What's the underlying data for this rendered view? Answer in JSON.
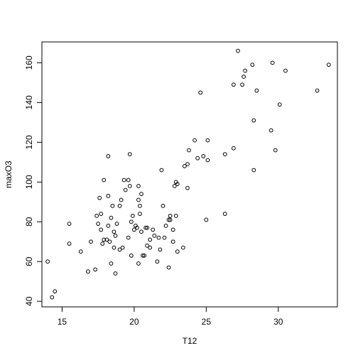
{
  "chart_data": {
    "type": "scatter",
    "xlabel": "T12",
    "ylabel": "maxO3",
    "xlim": [
      13.6,
      34.1
    ],
    "ylim": [
      37.2,
      170.5
    ],
    "x_ticks": [
      "15",
      "20",
      "25",
      "30"
    ],
    "y_ticks": [
      "40",
      "60",
      "80",
      "100",
      "120",
      "140",
      "160"
    ],
    "grid": false,
    "points": [
      {
        "x": 14.0,
        "y": 60
      },
      {
        "x": 14.3,
        "y": 42
      },
      {
        "x": 14.5,
        "y": 45
      },
      {
        "x": 15.5,
        "y": 79
      },
      {
        "x": 15.5,
        "y": 69
      },
      {
        "x": 16.3,
        "y": 65
      },
      {
        "x": 16.8,
        "y": 55
      },
      {
        "x": 17.0,
        "y": 70
      },
      {
        "x": 17.3,
        "y": 56
      },
      {
        "x": 17.4,
        "y": 83
      },
      {
        "x": 17.5,
        "y": 79
      },
      {
        "x": 17.6,
        "y": 92
      },
      {
        "x": 17.7,
        "y": 84
      },
      {
        "x": 17.7,
        "y": 76
      },
      {
        "x": 17.8,
        "y": 69
      },
      {
        "x": 17.9,
        "y": 71
      },
      {
        "x": 17.9,
        "y": 101
      },
      {
        "x": 18.1,
        "y": 71
      },
      {
        "x": 18.2,
        "y": 113
      },
      {
        "x": 18.2,
        "y": 93
      },
      {
        "x": 18.2,
        "y": 78
      },
      {
        "x": 18.3,
        "y": 70
      },
      {
        "x": 18.4,
        "y": 59
      },
      {
        "x": 18.4,
        "y": 82
      },
      {
        "x": 18.5,
        "y": 88
      },
      {
        "x": 18.6,
        "y": 75
      },
      {
        "x": 18.7,
        "y": 73
      },
      {
        "x": 18.6,
        "y": 67
      },
      {
        "x": 18.7,
        "y": 54
      },
      {
        "x": 18.8,
        "y": 79
      },
      {
        "x": 19.0,
        "y": 66
      },
      {
        "x": 19.0,
        "y": 88
      },
      {
        "x": 19.1,
        "y": 91
      },
      {
        "x": 19.2,
        "y": 67
      },
      {
        "x": 19.3,
        "y": 101
      },
      {
        "x": 19.4,
        "y": 96
      },
      {
        "x": 19.6,
        "y": 72
      },
      {
        "x": 19.6,
        "y": 101
      },
      {
        "x": 19.7,
        "y": 98
      },
      {
        "x": 19.7,
        "y": 114
      },
      {
        "x": 19.8,
        "y": 80
      },
      {
        "x": 19.8,
        "y": 63
      },
      {
        "x": 19.9,
        "y": 83
      },
      {
        "x": 20.0,
        "y": 76
      },
      {
        "x": 20.1,
        "y": 78
      },
      {
        "x": 20.2,
        "y": 77
      },
      {
        "x": 20.3,
        "y": 98
      },
      {
        "x": 20.3,
        "y": 91
      },
      {
        "x": 20.3,
        "y": 59
      },
      {
        "x": 20.4,
        "y": 88
      },
      {
        "x": 20.4,
        "y": 84
      },
      {
        "x": 20.5,
        "y": 94
      },
      {
        "x": 20.5,
        "y": 75
      },
      {
        "x": 20.6,
        "y": 63
      },
      {
        "x": 20.7,
        "y": 63
      },
      {
        "x": 20.8,
        "y": 77
      },
      {
        "x": 20.9,
        "y": 77
      },
      {
        "x": 20.9,
        "y": 68
      },
      {
        "x": 21.1,
        "y": 71
      },
      {
        "x": 21.1,
        "y": 67
      },
      {
        "x": 21.3,
        "y": 76
      },
      {
        "x": 21.4,
        "y": 73
      },
      {
        "x": 21.6,
        "y": 60
      },
      {
        "x": 21.7,
        "y": 72
      },
      {
        "x": 21.8,
        "y": 66
      },
      {
        "x": 21.9,
        "y": 106
      },
      {
        "x": 22.0,
        "y": 88
      },
      {
        "x": 22.1,
        "y": 72
      },
      {
        "x": 22.2,
        "y": 78
      },
      {
        "x": 22.4,
        "y": 81
      },
      {
        "x": 22.4,
        "y": 57
      },
      {
        "x": 22.5,
        "y": 83
      },
      {
        "x": 22.5,
        "y": 81
      },
      {
        "x": 22.7,
        "y": 76
      },
      {
        "x": 22.7,
        "y": 70
      },
      {
        "x": 22.8,
        "y": 98
      },
      {
        "x": 22.9,
        "y": 100
      },
      {
        "x": 23.0,
        "y": 99
      },
      {
        "x": 22.9,
        "y": 83
      },
      {
        "x": 23.0,
        "y": 65
      },
      {
        "x": 23.4,
        "y": 67
      },
      {
        "x": 23.5,
        "y": 108
      },
      {
        "x": 23.7,
        "y": 109
      },
      {
        "x": 23.7,
        "y": 97
      },
      {
        "x": 23.8,
        "y": 116
      },
      {
        "x": 24.2,
        "y": 121
      },
      {
        "x": 24.4,
        "y": 112
      },
      {
        "x": 24.6,
        "y": 145
      },
      {
        "x": 24.8,
        "y": 113
      },
      {
        "x": 25.0,
        "y": 81
      },
      {
        "x": 25.1,
        "y": 121
      },
      {
        "x": 25.1,
        "y": 111
      },
      {
        "x": 26.3,
        "y": 84
      },
      {
        "x": 26.3,
        "y": 114
      },
      {
        "x": 26.9,
        "y": 117
      },
      {
        "x": 26.9,
        "y": 149
      },
      {
        "x": 27.2,
        "y": 166
      },
      {
        "x": 27.5,
        "y": 149
      },
      {
        "x": 27.6,
        "y": 153
      },
      {
        "x": 27.7,
        "y": 156
      },
      {
        "x": 28.2,
        "y": 159
      },
      {
        "x": 28.3,
        "y": 131
      },
      {
        "x": 28.3,
        "y": 106
      },
      {
        "x": 28.5,
        "y": 146
      },
      {
        "x": 29.5,
        "y": 126
      },
      {
        "x": 29.6,
        "y": 160
      },
      {
        "x": 29.8,
        "y": 116
      },
      {
        "x": 30.1,
        "y": 139
      },
      {
        "x": 30.5,
        "y": 156
      },
      {
        "x": 32.7,
        "y": 146
      },
      {
        "x": 33.5,
        "y": 159
      }
    ]
  }
}
